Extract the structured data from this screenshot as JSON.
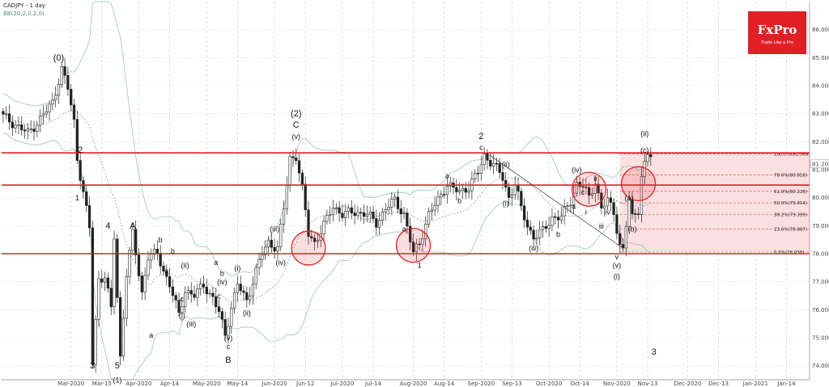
{
  "header": {
    "symbol": "CADJPY - 1 day",
    "indicator": "BB(20,2,0,2,0)"
  },
  "logo": {
    "brand": "FxPro",
    "tagline": "Trade Like a Pro",
    "color": "#e21f26"
  },
  "chart_data": {
    "type": "candlestick",
    "ylim": [
      73.5,
      87.0
    ],
    "y_ticks": [
      74.0,
      75.0,
      76.0,
      77.0,
      78.0,
      79.0,
      80.0,
      81.0,
      82.0,
      83.0,
      84.0,
      85.0,
      86.0
    ],
    "y_tick_labels": [
      "74.000",
      "75.000",
      "76.000",
      "77.000",
      "78.000",
      "79.000",
      "80.000",
      "81.000",
      "82.000",
      "83.000",
      "84.000",
      "85.000",
      "86.000"
    ],
    "x_labels": [
      "Mar-2020",
      "Mar-15",
      "Apr-2020",
      "Apr-14",
      "May-2020",
      "May-14",
      "Jun-2020",
      "Jun-12",
      "Jul-2020",
      "Jul-14",
      "Aug-2020",
      "Aug-14",
      "Sep-2020",
      "Sep-13",
      "Oct-2020",
      "Oct-14",
      "Nov-2020",
      "Nov-13",
      "Dec-2020",
      "Dec-13",
      "Jan-2021",
      "Jan-14"
    ],
    "x_label_index": [
      22,
      32,
      44,
      54,
      66,
      76,
      88,
      98,
      110,
      120,
      133,
      143,
      155,
      165,
      177,
      187,
      199,
      209,
      222,
      232,
      244,
      254
    ],
    "current_price": "81.207",
    "resistance_levels": [
      81.6,
      80.45,
      78.0
    ],
    "fibonacci": {
      "start_index": 200,
      "levels": [
        {
          "label": "100.0%(81.568)",
          "value": 81.568
        },
        {
          "label": "78.6%(80.818)",
          "value": 80.818
        },
        {
          "label": "61.8%(80.228)",
          "value": 80.228
        },
        {
          "label": "50.0%(79.814)",
          "value": 79.814
        },
        {
          "label": "38.2%(79.399)",
          "value": 79.399
        },
        {
          "label": "23.6%(78.887)",
          "value": 78.887
        },
        {
          "label": "0.0%(78.058)",
          "value": 78.058
        }
      ]
    },
    "circles": [
      {
        "index": 99,
        "value": 78.2
      },
      {
        "index": 133,
        "value": 78.3
      },
      {
        "index": 190,
        "value": 80.3
      },
      {
        "index": 206,
        "value": 80.5
      }
    ],
    "trendline": {
      "from_index": 158,
      "from_value": 81.5,
      "to_index": 201,
      "to_value": 78.2
    },
    "wave_labels": [
      {
        "text": "(0)",
        "i": 18,
        "v": 84.9,
        "big": true
      },
      {
        "text": "2",
        "i": 25,
        "v": 81.6,
        "big": true
      },
      {
        "text": "1",
        "i": 24,
        "v": 79.9,
        "big": false
      },
      {
        "text": "4",
        "i": 34,
        "v": 78.9,
        "big": true
      },
      {
        "text": "3",
        "i": 29,
        "v": 73.9,
        "big": true
      },
      {
        "text": "5",
        "i": 37,
        "v": 73.9,
        "big": true
      },
      {
        "text": "(1)",
        "i": 37,
        "v": 73.4,
        "big": false
      },
      {
        "text": "A",
        "i": 42,
        "v": 78.9,
        "big": true
      },
      {
        "text": "b",
        "i": 51,
        "v": 78.4,
        "big": false
      },
      {
        "text": "b",
        "i": 55,
        "v": 78.0,
        "big": false
      },
      {
        "text": "a",
        "i": 53,
        "v": 77.3,
        "big": false
      },
      {
        "text": "(ii)",
        "i": 59,
        "v": 77.5,
        "big": false
      },
      {
        "text": "c",
        "i": 58,
        "v": 76.3,
        "big": false
      },
      {
        "text": "(i)",
        "i": 58,
        "v": 75.7,
        "big": false
      },
      {
        "text": "(iii)",
        "i": 61,
        "v": 75.4,
        "big": false
      },
      {
        "text": "(iv)",
        "i": 71,
        "v": 76.9,
        "big": false
      },
      {
        "text": "a",
        "i": 69,
        "v": 77.6,
        "big": false
      },
      {
        "text": "b",
        "i": 71,
        "v": 77.2,
        "big": false
      },
      {
        "text": "c",
        "i": 70,
        "v": 76.4,
        "big": false
      },
      {
        "text": "(v)",
        "i": 73,
        "v": 74.9,
        "big": false
      },
      {
        "text": "c",
        "i": 73,
        "v": 74.6,
        "big": false
      },
      {
        "text": "B",
        "i": 73,
        "v": 74.1,
        "big": true
      },
      {
        "text": "(i)",
        "i": 76,
        "v": 77.4,
        "big": false
      },
      {
        "text": "(ii)",
        "i": 79,
        "v": 75.8,
        "big": false
      },
      {
        "text": "a",
        "i": 48,
        "v": 75.0,
        "big": false
      },
      {
        "text": "(iii)",
        "i": 88,
        "v": 78.8,
        "big": false
      },
      {
        "text": "(iv)",
        "i": 90,
        "v": 77.6,
        "big": false
      },
      {
        "text": "(2)",
        "i": 95,
        "v": 82.9,
        "big": true
      },
      {
        "text": "C",
        "i": 95,
        "v": 82.5,
        "big": true
      },
      {
        "text": "(v)",
        "i": 95,
        "v": 82.1,
        "big": false
      },
      {
        "text": "1",
        "i": 135,
        "v": 77.5,
        "big": false
      },
      {
        "text": "a",
        "i": 144,
        "v": 80.7,
        "big": false
      },
      {
        "text": "b",
        "i": 148,
        "v": 79.8,
        "big": false
      },
      {
        "text": "c",
        "i": 155,
        "v": 81.7,
        "big": false
      },
      {
        "text": "2",
        "i": 155,
        "v": 82.1,
        "big": true
      },
      {
        "text": "(ii)",
        "i": 163,
        "v": 81.1,
        "big": false
      },
      {
        "text": "(i)",
        "i": 163,
        "v": 79.7,
        "big": false
      },
      {
        "text": "(iii)",
        "i": 172,
        "v": 78.1,
        "big": false
      },
      {
        "text": "b",
        "i": 180,
        "v": 78.6,
        "big": false
      },
      {
        "text": "a",
        "i": 185,
        "v": 79.6,
        "big": false
      },
      {
        "text": "(iv)",
        "i": 186,
        "v": 80.9,
        "big": false
      },
      {
        "text": "c",
        "i": 188,
        "v": 80.1,
        "big": false
      },
      {
        "text": "ii",
        "i": 192,
        "v": 80.6,
        "big": false
      },
      {
        "text": "iv",
        "i": 196,
        "v": 79.4,
        "big": false
      },
      {
        "text": "i",
        "i": 189,
        "v": 79.4,
        "big": false
      },
      {
        "text": "iii",
        "i": 194,
        "v": 78.9,
        "big": false
      },
      {
        "text": "v",
        "i": 199,
        "v": 77.8,
        "big": false
      },
      {
        "text": "(v)",
        "i": 199,
        "v": 77.5,
        "big": false
      },
      {
        "text": "(i)",
        "i": 199,
        "v": 77.1,
        "big": false
      },
      {
        "text": "(a)",
        "i": 203,
        "v": 79.9,
        "big": false
      },
      {
        "text": "(b)",
        "i": 204,
        "v": 78.8,
        "big": false
      },
      {
        "text": "(ii)",
        "i": 208,
        "v": 82.2,
        "big": false
      },
      {
        "text": "(c)",
        "i": 208,
        "v": 81.6,
        "big": false
      },
      {
        "text": "3",
        "i": 211,
        "v": 74.4,
        "big": true
      },
      {
        "text": "a",
        "i": 130,
        "v": 78.8,
        "big": false
      }
    ]
  }
}
